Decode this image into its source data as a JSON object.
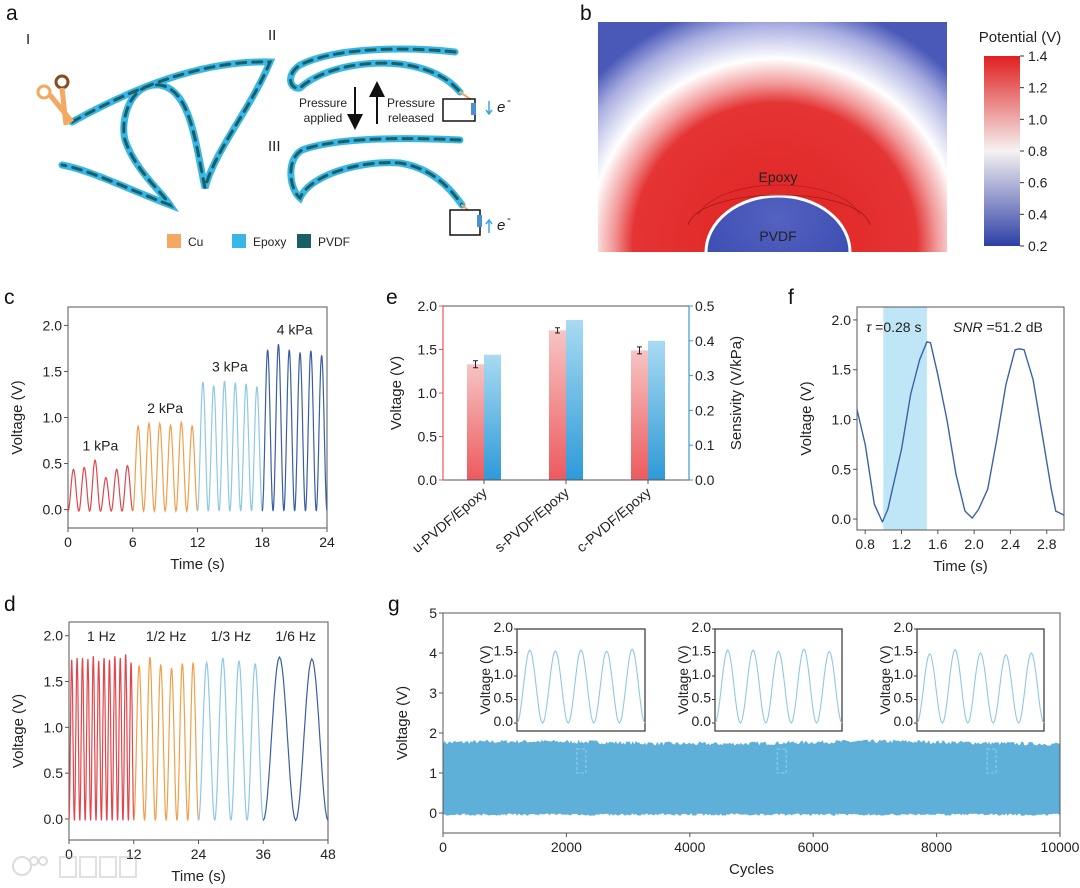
{
  "panel_labels": {
    "a": "a",
    "b": "b",
    "c": "c",
    "d": "d",
    "e": "e",
    "f": "f",
    "g": "g"
  },
  "panel_a": {
    "stage_labels": [
      "I",
      "II",
      "III"
    ],
    "pressure_applied": [
      "Pressure",
      "applied"
    ],
    "pressure_released": [
      "Pressure",
      "released"
    ],
    "electron": "e",
    "electron_sup": "-",
    "legend": [
      {
        "label": "Cu",
        "color": "#f4a862"
      },
      {
        "label": "Epoxy",
        "color": "#38b6e6"
      },
      {
        "label": "PVDF",
        "color": "#1b5f66"
      }
    ]
  },
  "panel_b": {
    "colorbar_title": "Potential (V)",
    "colorbar_ticks": [
      "1.4",
      "1.2",
      "1.0",
      "0.8",
      "0.6",
      "0.4",
      "0.2"
    ],
    "colorbar_range": [
      0.2,
      1.4
    ],
    "epoxy_label": "Epoxy",
    "pvdf_label": "PVDF"
  },
  "watermark": "大数跨境",
  "chart_data": [
    {
      "id": "c",
      "type": "line",
      "title": "",
      "xlabel": "Time (s)",
      "ylabel": "Voltage (V)",
      "xlim": [
        0,
        24
      ],
      "ylim": [
        -0.2,
        2.2
      ],
      "xticks": [
        "0",
        "6",
        "12",
        "18",
        "24"
      ],
      "yticks": [
        "0.0",
        "0.5",
        "1.0",
        "1.5",
        "2.0"
      ],
      "series": [
        {
          "name": "1 kPa",
          "color": "#e0474c",
          "start": 0,
          "period": 1,
          "peaks": [
            0.42,
            0.44,
            0.52,
            0.33,
            0.42,
            0.46
          ]
        },
        {
          "name": "2 kPa",
          "color": "#f0a04b",
          "start": 6,
          "period": 1,
          "peaks": [
            0.89,
            0.92,
            0.92,
            0.9,
            0.93,
            0.89
          ]
        },
        {
          "name": "3 kPa",
          "color": "#8fc8e6",
          "start": 12,
          "period": 1,
          "peaks": [
            1.37,
            1.33,
            1.38,
            1.36,
            1.35,
            1.32
          ]
        },
        {
          "name": "4 kPa",
          "color": "#3a5fa6",
          "start": 18,
          "period": 1,
          "peaks": [
            1.72,
            1.78,
            1.72,
            1.69,
            1.71,
            1.66
          ]
        }
      ]
    },
    {
      "id": "d",
      "type": "line",
      "title": "",
      "xlabel": "Time (s)",
      "ylabel": "Voltage (V)",
      "xlim": [
        0,
        48
      ],
      "ylim": [
        -0.23,
        2.15
      ],
      "xticks": [
        "0",
        "12",
        "24",
        "36",
        "48"
      ],
      "yticks": [
        "0.0",
        "0.5",
        "1.0",
        "1.5",
        "2.0"
      ],
      "series": [
        {
          "name": "1 Hz",
          "color": "#e0474c",
          "start": 0,
          "period": 1,
          "peaks": [
            1.72,
            1.74,
            1.74,
            1.73,
            1.76,
            1.71,
            1.74,
            1.72,
            1.76,
            1.74,
            1.78,
            1.69
          ]
        },
        {
          "name": "1/2 Hz",
          "color": "#f0a04b",
          "start": 12,
          "period": 2,
          "peaks": [
            1.66,
            1.75,
            1.67,
            1.63,
            1.68,
            1.69
          ]
        },
        {
          "name": "1/3 Hz",
          "color": "#8fc8e6",
          "start": 24,
          "period": 3,
          "peaks": [
            1.69,
            1.74,
            1.71,
            1.68
          ]
        },
        {
          "name": "1/6 Hz",
          "color": "#3a5fa6",
          "start": 36,
          "period": 6,
          "peaks": [
            1.75,
            1.73
          ]
        }
      ]
    },
    {
      "id": "e",
      "type": "bar",
      "title": "",
      "categories": [
        "u-PVDF/Epoxy",
        "s-PVDF/Epoxy",
        "c-PVDF/Epoxy"
      ],
      "ylabel": "Voltage (V)",
      "y2label": "Sensivity (V/kPa)",
      "ylim": [
        0,
        2
      ],
      "y2lim": [
        0,
        0.5
      ],
      "yticks": [
        "0.0",
        "0.5",
        "1.0",
        "1.5",
        "2.0"
      ],
      "y2ticks": [
        "0.0",
        "0.1",
        "0.2",
        "0.3",
        "0.4",
        "0.5"
      ],
      "series": [
        {
          "name": "Voltage",
          "axis": "left",
          "color": "#e8585c",
          "values": [
            1.33,
            1.72,
            1.49
          ],
          "errors": [
            0.04,
            0.03,
            0.04
          ]
        },
        {
          "name": "Sensitivity",
          "axis": "right",
          "color": "#3a9ad6",
          "values": [
            0.36,
            0.46,
            0.4
          ]
        }
      ]
    },
    {
      "id": "f",
      "type": "line",
      "title": "",
      "xlabel": "Time (s)",
      "ylabel": "Voltage (V)",
      "xlim": [
        0.71,
        2.99
      ],
      "ylim": [
        -0.11,
        2.13
      ],
      "xticks": [
        "0.8",
        "1.2",
        "1.6",
        "2.0",
        "2.4",
        "2.8"
      ],
      "yticks": [
        "0.0",
        "0.5",
        "1.0",
        "1.5",
        "2.0"
      ],
      "shaded_span": [
        1.0,
        1.48
      ],
      "annotations": {
        "tau_symbol": "τ",
        "tau_value": " =0.28 s",
        "snr_symbol": "SNR",
        "snr_value": " =51.2 dB"
      },
      "series": [
        {
          "name": "signal",
          "color": "#3a63a8",
          "x": [
            0.71,
            0.8,
            0.9,
            0.99,
            1.05,
            1.1,
            1.2,
            1.3,
            1.4,
            1.48,
            1.52,
            1.6,
            1.7,
            1.8,
            1.9,
            1.98,
            2.05,
            2.15,
            2.25,
            2.35,
            2.45,
            2.5,
            2.55,
            2.65,
            2.75,
            2.85,
            2.9,
            2.99
          ],
          "y": [
            1.1,
            0.75,
            0.15,
            -0.03,
            0.1,
            0.3,
            0.7,
            1.25,
            1.6,
            1.78,
            1.77,
            1.45,
            1.0,
            0.45,
            0.08,
            0.01,
            0.1,
            0.3,
            0.8,
            1.35,
            1.7,
            1.71,
            1.7,
            1.4,
            0.85,
            0.3,
            0.08,
            0.04
          ]
        }
      ]
    },
    {
      "id": "g",
      "type": "area",
      "title": "",
      "xlabel": "Cycles",
      "ylabel": "Voltage (V)",
      "xlim": [
        0,
        10000
      ],
      "ylim": [
        -0.5,
        5
      ],
      "xticks": [
        "0",
        "2000",
        "4000",
        "6000",
        "8000",
        "10000"
      ],
      "yticks": [
        "0",
        "1",
        "2",
        "3",
        "4",
        "5"
      ],
      "band": {
        "upper": 1.76,
        "lower": -0.04,
        "color": "#5fb0d8"
      },
      "insets": [
        {
          "at_cycle": 2250,
          "ylabel": "Voltage (V)",
          "ylim": [
            0,
            2
          ],
          "yticks": [
            "0.0",
            "0.5",
            "1.0",
            "1.5",
            "2.0"
          ],
          "peaks": [
            1.55,
            1.53,
            1.55,
            1.53,
            1.57
          ]
        },
        {
          "at_cycle": 5500,
          "ylabel": "Voltage (V)",
          "ylim": [
            0,
            2
          ],
          "yticks": [
            "0.0",
            "0.5",
            "1.0",
            "1.5",
            "2.0"
          ],
          "peaks": [
            1.55,
            1.55,
            1.53,
            1.57,
            1.52
          ]
        },
        {
          "at_cycle": 8900,
          "ylabel": "Voltage (V)",
          "ylim": [
            0,
            2
          ],
          "yticks": [
            "0.0",
            "0.5",
            "1.0",
            "1.5",
            "2.0"
          ],
          "peaks": [
            1.47,
            1.56,
            1.49,
            1.45,
            1.49
          ]
        }
      ]
    }
  ]
}
